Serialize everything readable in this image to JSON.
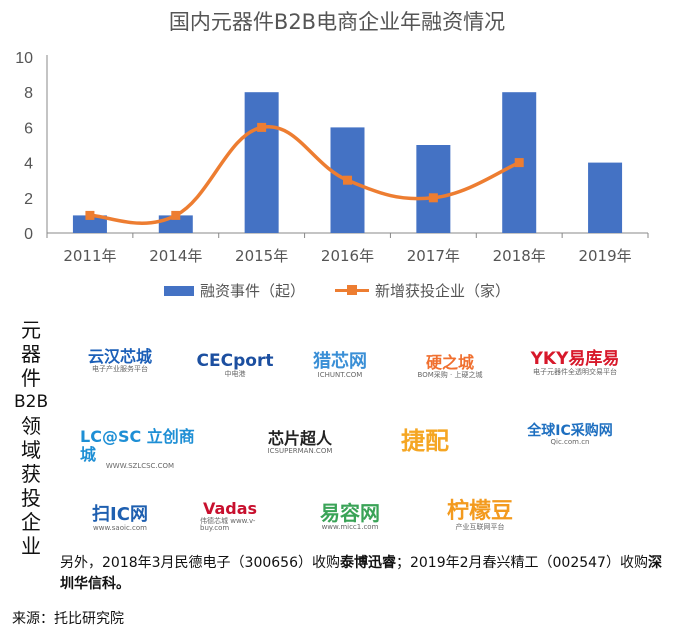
{
  "chart_data": {
    "type": "bar+line",
    "title": "国内元器件B2B电商企业年融资情况",
    "categories": [
      "2011年",
      "2014年",
      "2015年",
      "2016年",
      "2017年",
      "2018年",
      "2019年"
    ],
    "ylim": [
      0,
      10
    ],
    "yticks": [
      0,
      2,
      4,
      6,
      8,
      10
    ],
    "grid": false,
    "legend_position": "bottom",
    "series": [
      {
        "name": "融资事件（起）",
        "type": "bar",
        "color": "#4472c4",
        "values": [
          1,
          1,
          8,
          6,
          5,
          8,
          4
        ]
      },
      {
        "name": "新增获投企业（家）",
        "type": "line",
        "smooth": true,
        "marker": "square",
        "color": "#ed7d31",
        "values": [
          1,
          1,
          6,
          3,
          2,
          4,
          null
        ]
      }
    ]
  },
  "side_label": [
    "元",
    "器",
    "件",
    "B2B",
    "领",
    "域",
    "获",
    "投",
    "企",
    "业"
  ],
  "logos": [
    {
      "name": "云汉芯城",
      "text": "云汉芯城",
      "sub": "电子产业服务平台",
      "color": "#1b5fb8"
    },
    {
      "name": "CECport",
      "text": "CECport",
      "sub": "中电港",
      "color": "#1c4fa0"
    },
    {
      "name": "猎芯网",
      "text": "猎芯网",
      "sub": "ICHUNT.COM",
      "color": "#3a8fd6"
    },
    {
      "name": "硬之城",
      "text": "硬之城",
      "sub": "BOM采购 · 上硬之城",
      "color": "#f07030"
    },
    {
      "name": "YKY易库易",
      "text": "YKY易库易",
      "sub": "电子元器件全透明交易平台",
      "color": "#d7182a"
    },
    {
      "name": "立创商城",
      "text": "LC@SC 立创商城",
      "sub": "WWW.SZLCSC.COM",
      "color": "#1e8fd5"
    },
    {
      "name": "芯片超人",
      "text": "芯片超人",
      "sub": "ICSUPERMAN.COM",
      "color": "#222222"
    },
    {
      "name": "捷配",
      "text": "捷配",
      "sub": "",
      "color": "#f5a623"
    },
    {
      "name": "全球IC采购网",
      "text": "全球IC采购网",
      "sub": "Qic.com.cn",
      "color": "#1e6fc0"
    },
    {
      "name": "扫IC网",
      "text": "扫IC网",
      "sub": "www.saoic.com",
      "color": "#1e5fb0"
    },
    {
      "name": "伟德芯城",
      "text": "Vadas",
      "sub": "伟德芯城 www.v-buy.com",
      "color": "#c8102e"
    },
    {
      "name": "易容网",
      "text": "易容网",
      "sub": "www.micc1.com",
      "color": "#3aa357"
    },
    {
      "name": "柠檬豆",
      "text": "柠檬豆",
      "sub": "产业互联网平台",
      "color": "#f39a1e"
    }
  ],
  "note": {
    "p1": "另外，2018年3月民德电子（300656）收购",
    "b1": "泰博迅睿",
    "p2": "；2019年2月春兴精工（002547）收购",
    "b2": "深圳华信科。"
  },
  "source": "来源：托比研究院"
}
